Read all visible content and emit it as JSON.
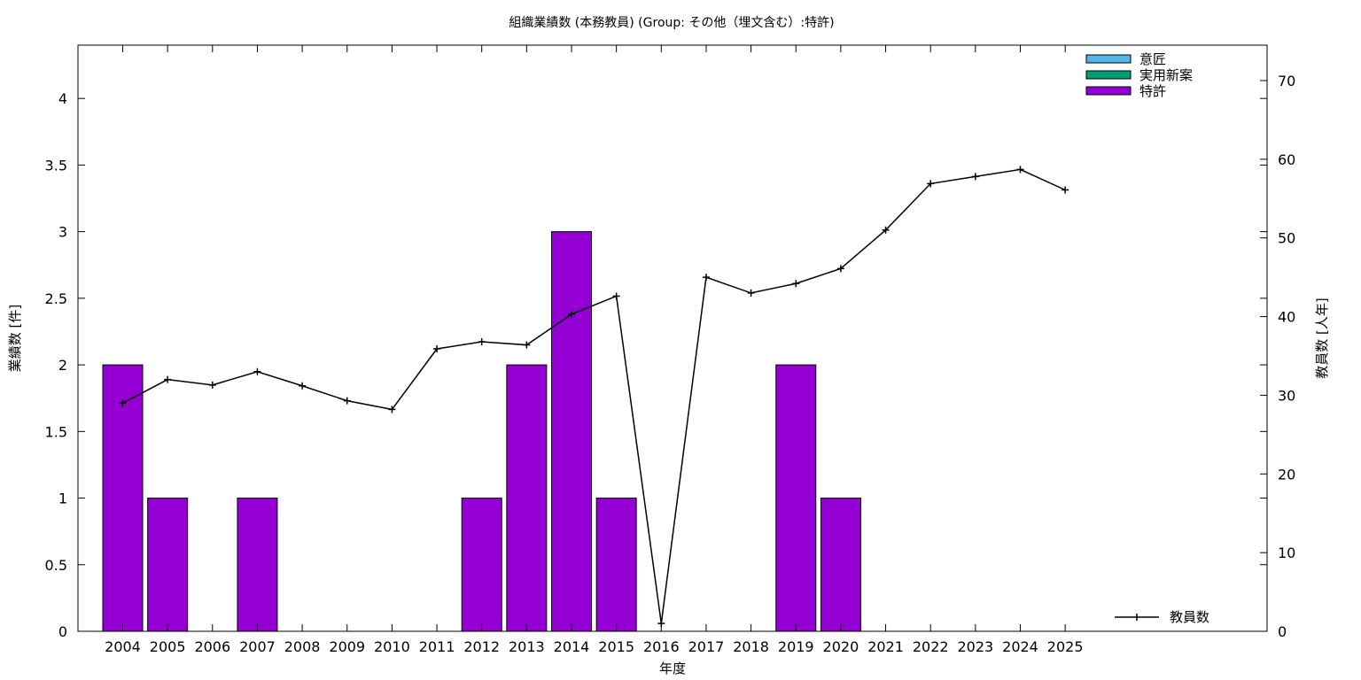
{
  "chart_data": {
    "type": "bar",
    "title": "組織業績数 (本務教員) (Group: その他（埋文含む）:特許)",
    "xlabel": "年度",
    "ylabel": "業績数 [件]",
    "y2label": "教員数 [人年]",
    "categories": [
      "2004",
      "2005",
      "2006",
      "2007",
      "2008",
      "2009",
      "2010",
      "2011",
      "2012",
      "2013",
      "2014",
      "2015",
      "2016",
      "2017",
      "2018",
      "2019",
      "2020",
      "2021",
      "2022",
      "2023",
      "2024",
      "2025"
    ],
    "ylim": [
      0,
      4.4
    ],
    "y2lim": [
      0,
      74.5
    ],
    "yticks": [
      "0",
      "0.5",
      "1",
      "1.5",
      "2",
      "2.5",
      "3",
      "3.5",
      "4"
    ],
    "y2ticks": [
      "0",
      "10",
      "20",
      "30",
      "40",
      "50",
      "60",
      "70"
    ],
    "series": [
      {
        "name": "意匠",
        "type": "bar",
        "color": "#56b4e9",
        "values": [
          0,
          0,
          0,
          0,
          0,
          0,
          0,
          0,
          0,
          0,
          0,
          0,
          0,
          0,
          0,
          0,
          0,
          0,
          0,
          0,
          0,
          0
        ]
      },
      {
        "name": "実用新案",
        "type": "bar",
        "color": "#009e73",
        "values": [
          0,
          0,
          0,
          0,
          0,
          0,
          0,
          0,
          0,
          0,
          0,
          0,
          0,
          0,
          0,
          0,
          0,
          0,
          0,
          0,
          0,
          0
        ]
      },
      {
        "name": "特許",
        "type": "bar",
        "color": "#9400d3",
        "values": [
          2,
          1,
          0,
          1,
          0,
          0,
          0,
          0,
          1,
          2,
          3,
          1,
          0,
          0,
          0,
          2,
          1,
          0,
          0,
          0,
          0,
          0
        ]
      },
      {
        "name": "教員数",
        "type": "line",
        "axis": "right",
        "color": "#000000",
        "values": [
          29.0,
          32.0,
          31.3,
          33.0,
          31.2,
          29.3,
          28.2,
          35.9,
          36.8,
          36.4,
          40.3,
          42.6,
          1.0,
          45.0,
          43.0,
          44.2,
          46.1,
          51.0,
          56.9,
          57.8,
          58.7,
          56.1
        ]
      }
    ],
    "legend_position": "top-right",
    "grid": false
  }
}
